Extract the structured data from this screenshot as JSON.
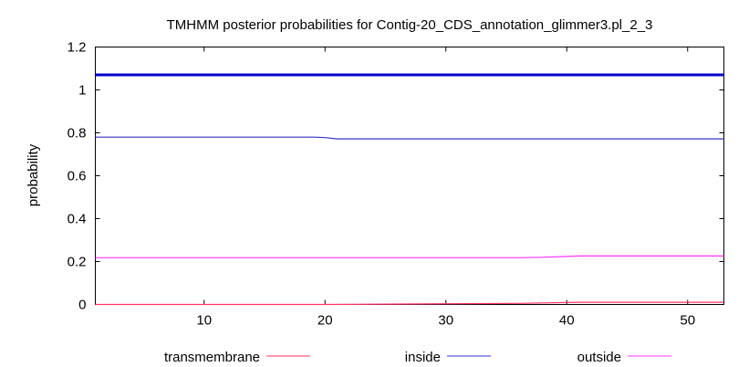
{
  "chart_data": {
    "type": "line",
    "title": "TMHMM posterior probabilities for Contig-20_CDS_annotation_glimmer3.pl_2_3",
    "xlabel": "",
    "ylabel": "probability",
    "xlim": [
      1,
      53
    ],
    "ylim": [
      0,
      1.2
    ],
    "x_ticks": [
      10,
      20,
      30,
      40,
      50
    ],
    "y_ticks": [
      0,
      0.2,
      0.4,
      0.6,
      0.8,
      1,
      1.2
    ],
    "y_tick_labels": [
      "0",
      "0.2",
      "0.4",
      "0.6",
      "0.8",
      "1",
      "1.2"
    ],
    "grid": false,
    "legend_position": "bottom",
    "reference_line": {
      "y": 1.07,
      "color": "#0000cc"
    },
    "series": [
      {
        "name": "transmembrane",
        "color": "#ff3366",
        "x": [
          1,
          20,
          36,
          41,
          53
        ],
        "y": [
          0.0,
          0.0,
          0.005,
          0.01,
          0.01
        ]
      },
      {
        "name": "inside",
        "color": "#3333cc",
        "x": [
          1,
          19,
          20,
          21,
          22,
          35,
          38,
          40,
          53
        ],
        "y": [
          0.78,
          0.78,
          0.778,
          0.772,
          0.772,
          0.772,
          0.772,
          0.772,
          0.772
        ]
      },
      {
        "name": "outside",
        "color": "#ff33ff",
        "x": [
          1,
          20,
          36,
          38,
          40,
          41,
          53
        ],
        "y": [
          0.218,
          0.218,
          0.218,
          0.22,
          0.224,
          0.226,
          0.226
        ]
      }
    ]
  }
}
